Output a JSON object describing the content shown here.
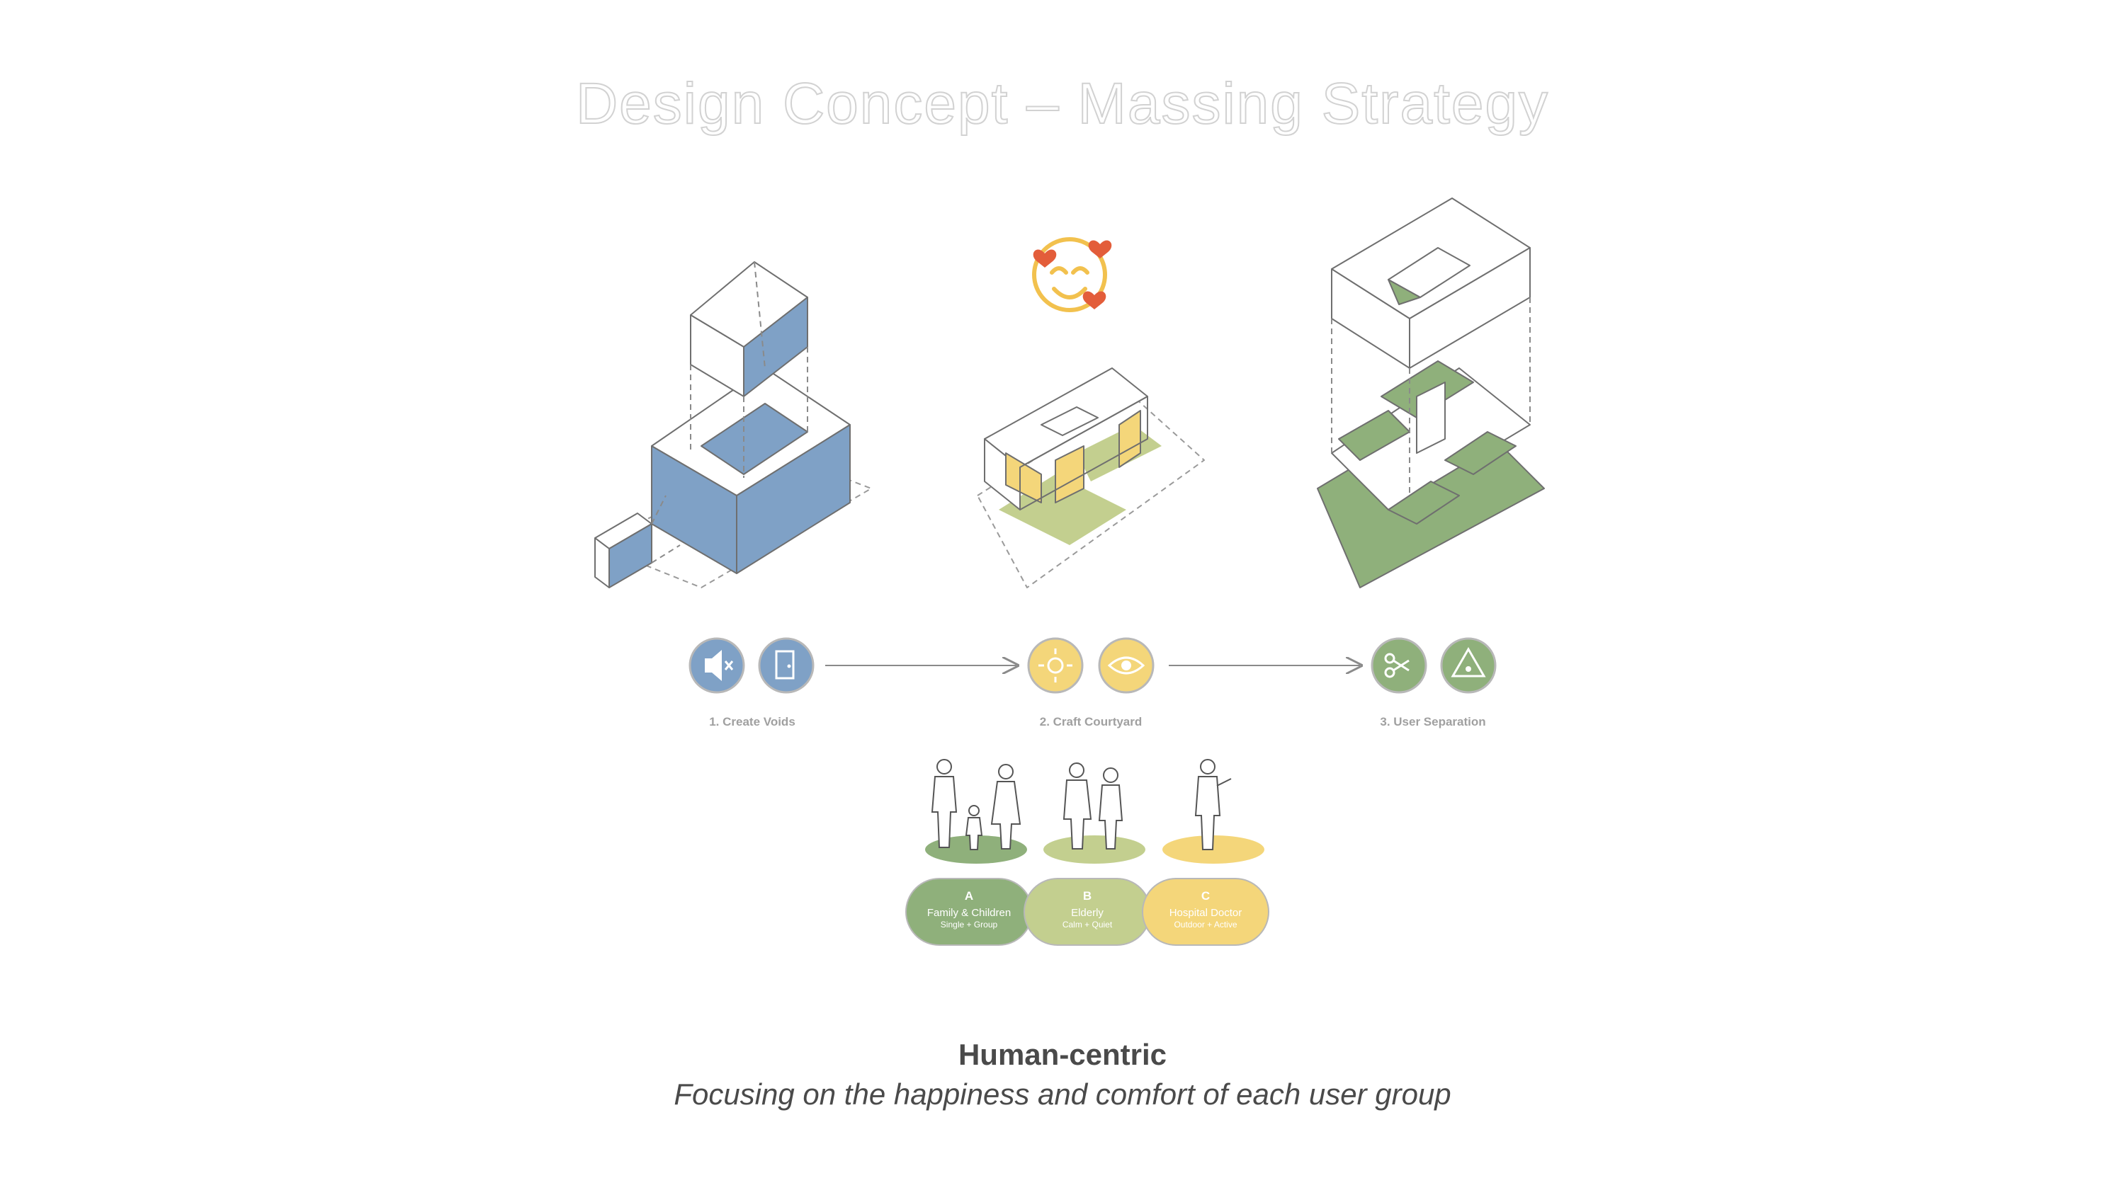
{
  "title": "Design Concept – Massing Strategy",
  "steps": [
    {
      "label": "1. Create Voids",
      "icons": [
        "speaker-mute-icon",
        "door-icon"
      ],
      "color": "#7fa1c6"
    },
    {
      "label": "2. Craft Courtyard",
      "icons": [
        "sun-icon",
        "eye-icon"
      ],
      "color": "#f4d67a"
    },
    {
      "label": "3. User Separation",
      "icons": [
        "scissors-icon",
        "warning-icon"
      ],
      "color": "#8fb07b"
    }
  ],
  "user_groups": [
    {
      "code": "A",
      "name": "Family & Children",
      "sub": "Single + Group",
      "color": "#8fb07b"
    },
    {
      "code": "B",
      "name": "Elderly",
      "sub": "Calm + Quiet",
      "color": "#c3cf8f"
    },
    {
      "code": "C",
      "name": "Hospital Doctor",
      "sub": "Outdoor + Active",
      "color": "#f4d67a"
    }
  ],
  "caption": {
    "title": "Human-centric",
    "subtitle": "Focusing on the happiness and comfort of each user group"
  },
  "colors": {
    "blue": "#7fa1c6",
    "yellow": "#f4d67a",
    "green": "#8fb07b",
    "olive": "#c3cf8f",
    "line": "#6f6f6f"
  }
}
